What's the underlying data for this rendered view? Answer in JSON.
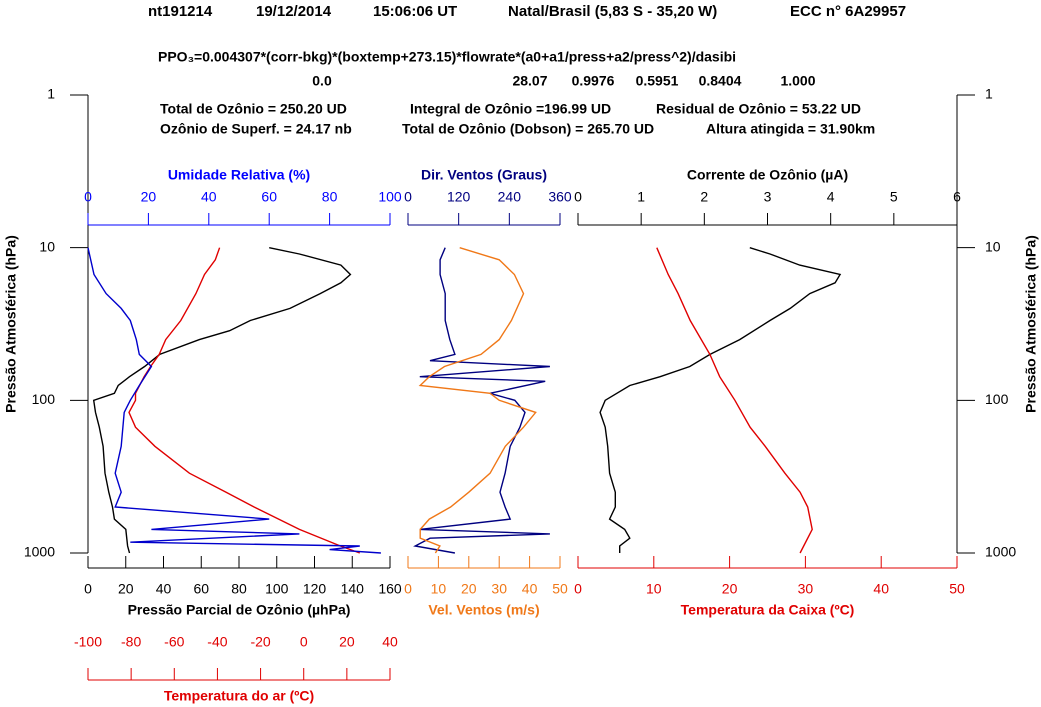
{
  "header": {
    "title": [
      "nt191214",
      "19/12/2014",
      "15:06:06 UT",
      "Natal/Brasil (5,83 S - 35,20 W)",
      "ECC  n° 6A29957"
    ],
    "formula": "PPO₃=0.004307*(corr-bkg)*(boxtemp+273.15)*flowrate*(a0+a1/press+a2/press^2)/dasibi",
    "coefficients": [
      "0.0",
      "28.07",
      "0.9976",
      "0.5951",
      "0.8404",
      "1.000"
    ],
    "summary": [
      "Total de Ozônio = 250.20 UD",
      "Integral de Ozônio =196.99  UD",
      "Residual  de Ozônio = 53.22 UD",
      "Ozônio de Superf. = 24.17 nb",
      "Total de Ozônio (Dobson) = 265.70 UD",
      "Altura atingida = 31.90km"
    ]
  },
  "chart_data": {
    "type": "line",
    "ylabel": "Pressão Atmosférica (hPa)",
    "ylim": [
      1000,
      1
    ],
    "yticks": [
      1,
      10,
      100,
      1000
    ],
    "log_y": true,
    "panels": [
      {
        "axes": [
          {
            "label": "Umidade Relativa (%)",
            "side": "top",
            "color": "#0000ff",
            "lim": [
              0,
              100
            ],
            "ticks": [
              0,
              20,
              40,
              60,
              80,
              100
            ]
          },
          {
            "label": "Pressão Parcial de Ozônio (µhPa)",
            "side": "bottom",
            "color": "#000000",
            "lim": [
              0,
              160
            ],
            "ticks": [
              0,
              20,
              40,
              60,
              80,
              100,
              120,
              140,
              160
            ]
          },
          {
            "label": "Temperatura do ar (ºC)",
            "side": "bottom",
            "color": "#e00000",
            "lim": [
              -100,
              40
            ],
            "ticks": [
              -100,
              -80,
              -60,
              -40,
              -20,
              0,
              20,
              40
            ]
          }
        ],
        "series": [
          {
            "axis": 1,
            "color": "#000000",
            "pressure": [
              1000,
              900,
              700,
              600,
              500,
              400,
              300,
              200,
              150,
              120,
              100,
              90,
              80,
              70,
              60,
              50,
              40,
              35,
              30,
              25,
              20,
              17,
              15,
              13,
              11,
              10
            ],
            "values": [
              22,
              21,
              20,
              14,
              13,
              11,
              9,
              8,
              6,
              4,
              3,
              14,
              16,
              22,
              30,
              38,
              59,
              75,
              86,
              107,
              123,
              134,
              139,
              134,
              112,
              96
            ]
          },
          {
            "axis": 2,
            "color": "#e00000",
            "pressure": [
              1000,
              900,
              700,
              500,
              400,
              300,
              200,
              150,
              120,
              100,
              90,
              70,
              60,
              50,
              40,
              30,
              20,
              15,
              12,
              10
            ],
            "values": [
              26,
              17,
              -2,
              -23,
              -36,
              -53,
              -69,
              -78,
              -81,
              -78,
              -78,
              -74,
              -71,
              -67,
              -64,
              -57,
              -50,
              -46,
              -41,
              -39
            ]
          },
          {
            "axis": 0,
            "color": "#0000cc",
            "pressure": [
              1000,
              950,
              900,
              850,
              750,
              700,
              600,
              500,
              400,
              300,
              200,
              120,
              100,
              80,
              60,
              50,
              40,
              30,
              25,
              20,
              15,
              10
            ],
            "values": [
              97,
              80,
              90,
              14,
              70,
              21,
              60,
              9,
              11,
              9,
              11,
              12,
              14,
              17,
              21,
              17,
              16,
              14,
              11,
              6,
              2,
              0
            ]
          }
        ]
      },
      {
        "axes": [
          {
            "label": "Dir. Ventos (Graus)",
            "side": "top",
            "color": "#000080",
            "lim": [
              0,
              360
            ],
            "ticks": [
              0,
              120,
              240,
              360
            ]
          },
          {
            "label": "Vel. Ventos (m/s)",
            "side": "bottom",
            "color": "#f07818",
            "lim": [
              0,
              50
            ],
            "ticks": [
              0,
              10,
              20,
              30,
              40,
              50
            ]
          }
        ],
        "series": [
          {
            "axis": 0,
            "color": "#000080",
            "pressure": [
              1000,
              900,
              800,
              750,
              700,
              600,
              500,
              400,
              300,
              200,
              150,
              120,
              100,
              90,
              75,
              70,
              60,
              55,
              50,
              40,
              30,
              20,
              15,
              12,
              10
            ],
            "values": [
              111,
              17,
              52,
              336,
              28,
              242,
              230,
              218,
              230,
              242,
              265,
              277,
              253,
              194,
              325,
              28,
              336,
              52,
              111,
              99,
              88,
              88,
              76,
              76,
              88
            ]
          },
          {
            "axis": 1,
            "color": "#f07818",
            "pressure": [
              1000,
              900,
              800,
              700,
              600,
              500,
              400,
              300,
              200,
              150,
              120,
              100,
              90,
              80,
              70,
              60,
              50,
              40,
              30,
              20,
              15,
              12,
              10
            ],
            "values": [
              9,
              10.5,
              4,
              4,
              7,
              14,
              20,
              27,
              32,
              38,
              42,
              30,
              27,
              4,
              7,
              12,
              24,
              30,
              34,
              38,
              35,
              30,
              17
            ]
          }
        ]
      },
      {
        "axes": [
          {
            "label": "Corrente de Ozônio (µA)",
            "side": "top",
            "color": "#000000",
            "lim": [
              0,
              6
            ],
            "ticks": [
              0,
              1,
              2,
              3,
              4,
              5,
              6
            ]
          },
          {
            "label": "Temperatura da Caixa (ºC)",
            "side": "bottom",
            "color": "#e00000",
            "lim": [
              0,
              50
            ],
            "ticks": [
              0,
              10,
              20,
              30,
              40,
              50
            ]
          }
        ],
        "series": [
          {
            "axis": 0,
            "color": "#000000",
            "pressure": [
              1000,
              900,
              800,
              700,
              600,
              500,
              400,
              300,
              200,
              150,
              120,
              100,
              80,
              70,
              60,
              50,
              40,
              30,
              25,
              20,
              17,
              15,
              13,
              11,
              10
            ],
            "values": [
              0.66,
              0.66,
              0.82,
              0.74,
              0.5,
              0.59,
              0.59,
              0.5,
              0.47,
              0.43,
              0.35,
              0.43,
              0.82,
              1.3,
              1.77,
              2.09,
              2.56,
              3.04,
              3.36,
              3.67,
              4.07,
              4.15,
              3.51,
              3.04,
              2.72
            ]
          },
          {
            "axis": 1,
            "color": "#e00000",
            "pressure": [
              1000,
              700,
              500,
              400,
              300,
              200,
              150,
              100,
              70,
              50,
              30,
              20,
              15,
              10
            ],
            "values": [
              29.3,
              30.9,
              30.3,
              29.3,
              27.3,
              24.7,
              22.7,
              20.7,
              18.7,
              17.4,
              14.8,
              13.2,
              11.9,
              10.4
            ]
          }
        ]
      }
    ]
  }
}
